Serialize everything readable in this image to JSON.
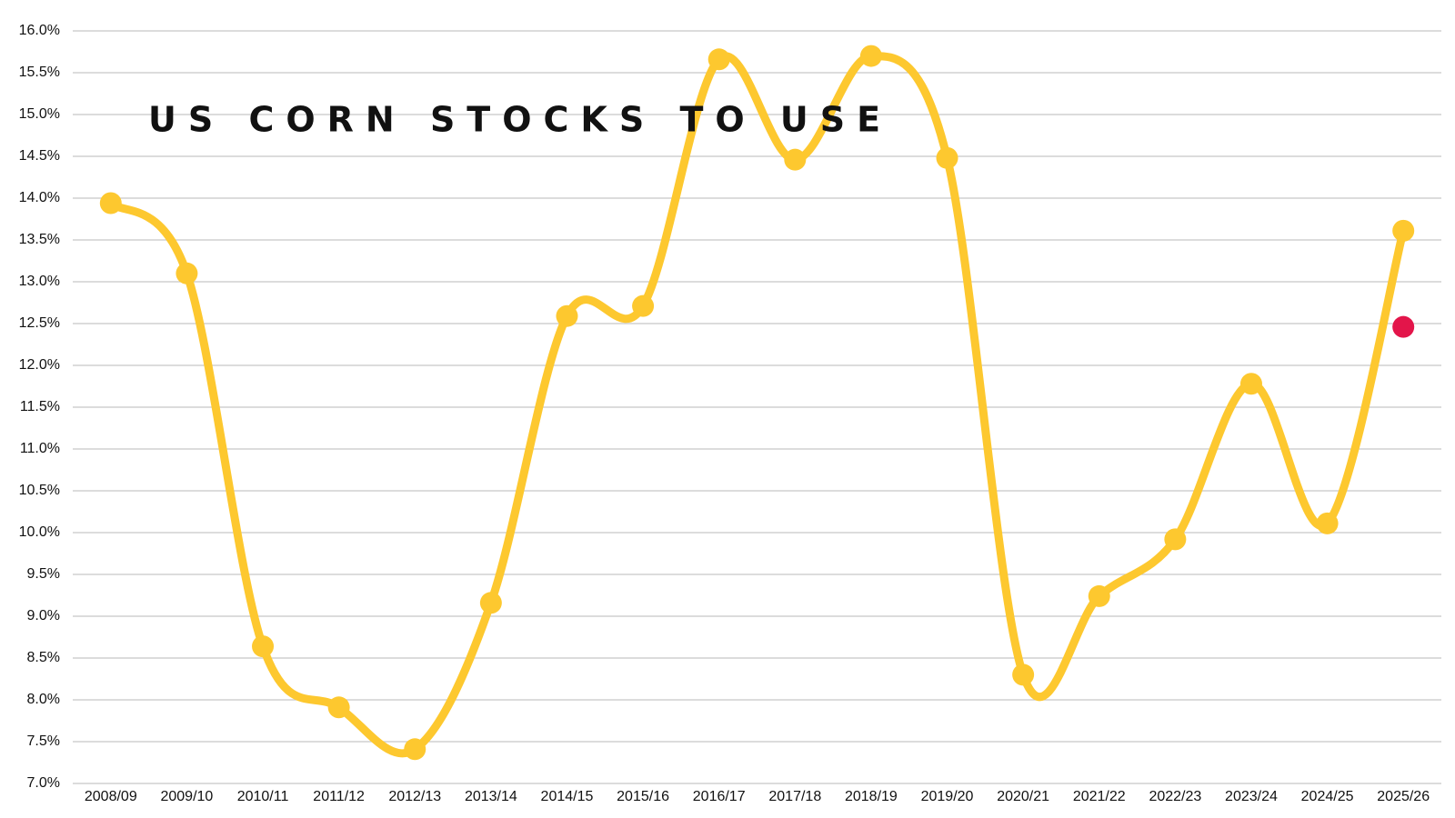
{
  "chart_data": {
    "type": "line",
    "title": "US CORN STOCKS TO USE",
    "categories": [
      "2008/09",
      "2009/10",
      "2010/11",
      "2011/12",
      "2012/13",
      "2013/14",
      "2014/15",
      "2015/16",
      "2016/17",
      "2017/18",
      "2018/19",
      "2019/20",
      "2020/21",
      "2021/22",
      "2022/23",
      "2023/24",
      "2024/25",
      "2025/26"
    ],
    "series": [
      {
        "color": "#fdc82f",
        "values": [
          13.94,
          13.1,
          8.64,
          7.91,
          7.41,
          9.16,
          12.59,
          12.71,
          15.66,
          14.46,
          15.7,
          14.48,
          8.3,
          9.24,
          9.92,
          11.78,
          10.11,
          13.61
        ]
      },
      {
        "color": "#e3154a",
        "values": [
          null,
          null,
          null,
          null,
          null,
          null,
          null,
          null,
          null,
          null,
          null,
          null,
          null,
          null,
          null,
          null,
          null,
          12.46
        ]
      }
    ],
    "ylim": [
      7,
      16
    ],
    "yticks": [
      {
        "value": 7,
        "label": "7.0%"
      },
      {
        "value": 7.5,
        "label": "7.5%"
      },
      {
        "value": 8,
        "label": "8.0%"
      },
      {
        "value": 8.5,
        "label": "8.5%"
      },
      {
        "value": 9,
        "label": "9.0%"
      },
      {
        "value": 9.5,
        "label": "9.5%"
      },
      {
        "value": 10,
        "label": "10.0%"
      },
      {
        "value": 10.5,
        "label": "10.5%"
      },
      {
        "value": 11,
        "label": "11.0%"
      },
      {
        "value": 11.5,
        "label": "11.5%"
      },
      {
        "value": 12,
        "label": "12.0%"
      },
      {
        "value": 12.5,
        "label": "12.5%"
      },
      {
        "value": 13,
        "label": "13.0%"
      },
      {
        "value": 13.5,
        "label": "13.5%"
      },
      {
        "value": 14,
        "label": "14.0%"
      },
      {
        "value": 14.5,
        "label": "14.5%"
      },
      {
        "value": 15,
        "label": "15.0%"
      },
      {
        "value": 15.5,
        "label": "15.5%"
      },
      {
        "value": 16,
        "label": "16.0%"
      }
    ],
    "grid": true,
    "smooth": true
  }
}
